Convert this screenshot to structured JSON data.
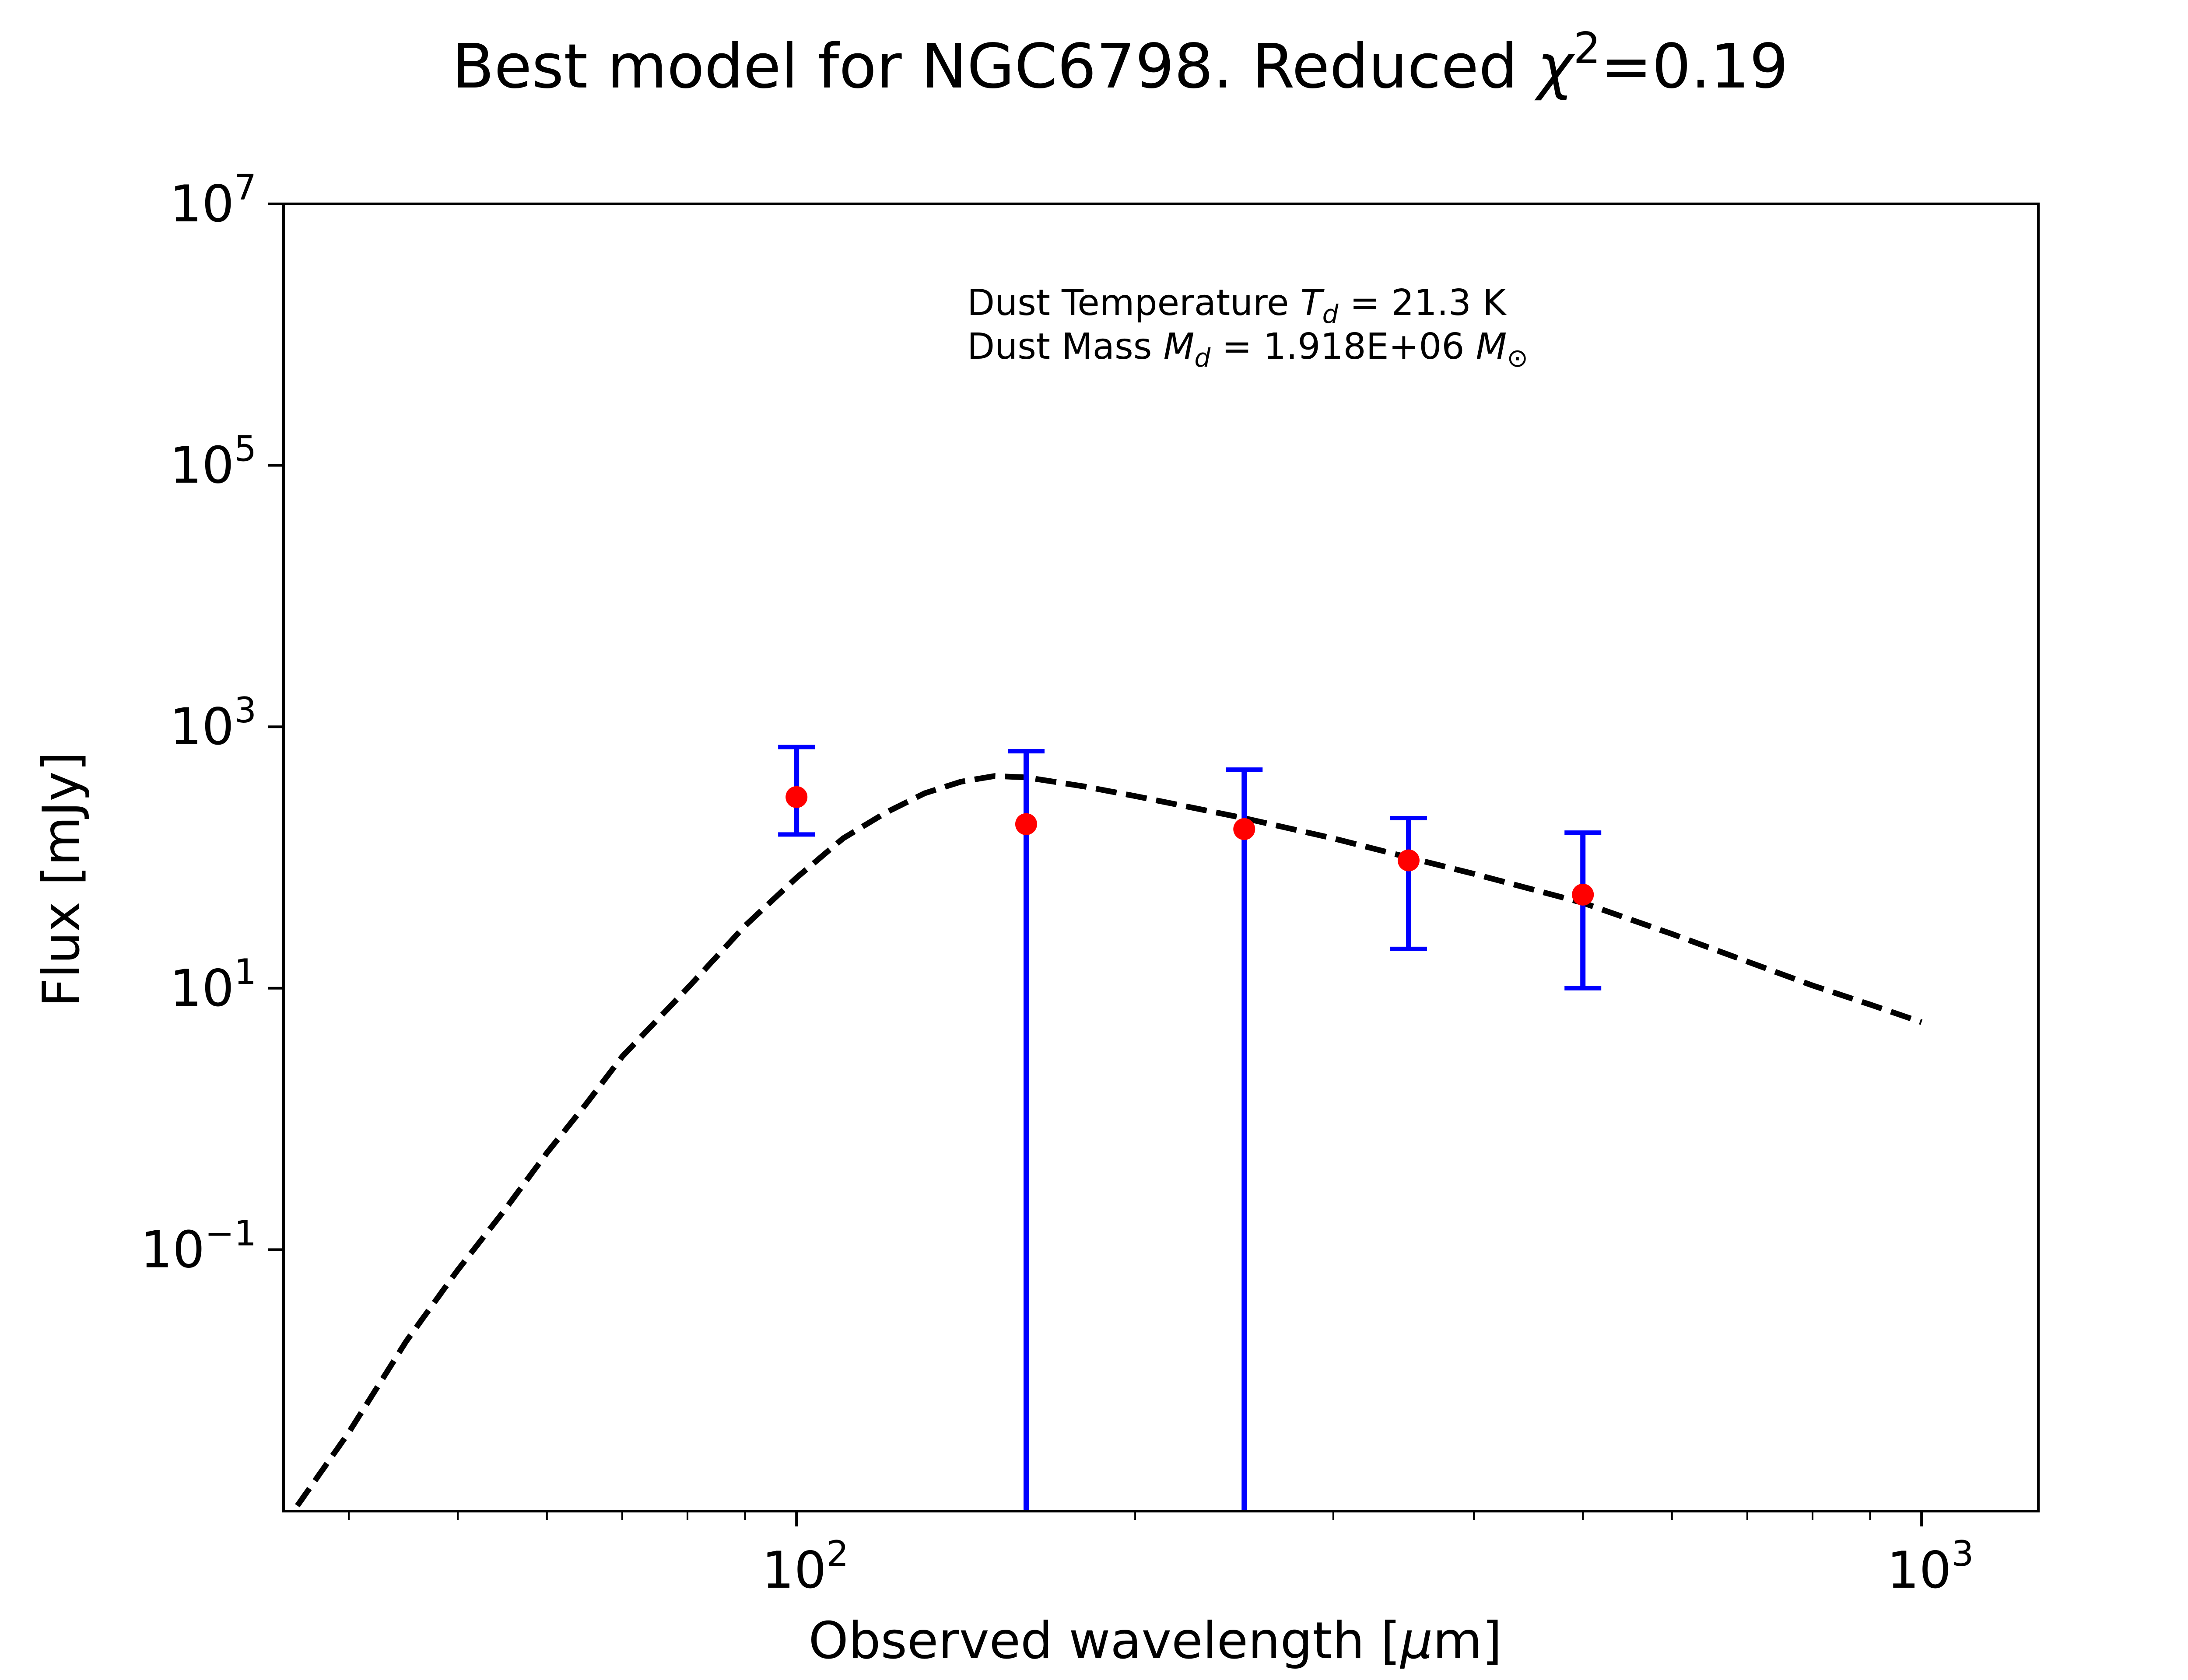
{
  "chart_data": {
    "type": "scatter",
    "title_main": "Best model for NGC6798. Reduced ",
    "title_chi": "χ",
    "title_sup": "2",
    "title_tail": "=0.19",
    "xlabel_text": "Observed wavelength [",
    "xlabel_mu": "μ",
    "xlabel_tail": "m]",
    "ylabel": "Flux [mJy]",
    "x_scale": "log",
    "y_scale": "log",
    "xlim": [
      35,
      1270
    ],
    "ylim": [
      0.001,
      10000000
    ],
    "x_major_ticks": [
      {
        "value": 100,
        "base": "10",
        "exp": "2"
      },
      {
        "value": 1000,
        "base": "10",
        "exp": "3"
      }
    ],
    "y_major_ticks": [
      {
        "value": 0.1,
        "base": "10",
        "exp": "−1"
      },
      {
        "value": 10,
        "base": "10",
        "exp": "1"
      },
      {
        "value": 1000,
        "base": "10",
        "exp": "3"
      },
      {
        "value": 100000,
        "base": "10",
        "exp": "5"
      },
      {
        "value": 10000000,
        "base": "10",
        "exp": "7"
      }
    ],
    "annotation": {
      "line1_prefix": "Dust Temperature ",
      "line1_sym": "T",
      "line1_sub": "d",
      "line1_value": " = 21.3 K",
      "line2_prefix": "Dust Mass ",
      "line2_sym": "M",
      "line2_sub": "d",
      "line2_value": " = 1.918E+06 ",
      "line2_unit": "M",
      "line2_unit_sub": "⊙"
    },
    "observations": [
      {
        "x": 100,
        "y": 290,
        "yerr_low": 150,
        "yerr_high": 700
      },
      {
        "x": 160,
        "y": 180,
        "yerr_low": 0.001,
        "yerr_high": 650
      },
      {
        "x": 250,
        "y": 165,
        "yerr_low": 0.001,
        "yerr_high": 470
      },
      {
        "x": 350,
        "y": 95,
        "yerr_low": 20,
        "yerr_high": 200
      },
      {
        "x": 500,
        "y": 52,
        "yerr_low": 10,
        "yerr_high": 155
      }
    ],
    "model": {
      "style": "dashed",
      "x": [
        36,
        40,
        45,
        50,
        55,
        60,
        65,
        70,
        80,
        90,
        100,
        110,
        120,
        130,
        140,
        150,
        160,
        180,
        200,
        250,
        300,
        350,
        400,
        500,
        600,
        700,
        800,
        900,
        1000
      ],
      "y": [
        0.0011,
        0.004,
        0.02,
        0.07,
        0.2,
        0.55,
        1.3,
        3,
        10,
        30,
        70,
        140,
        220,
        310,
        380,
        420,
        410,
        350,
        295,
        200,
        140,
        100,
        75,
        45,
        26,
        16,
        10.5,
        7.5,
        5.5
      ]
    },
    "colors": {
      "points": "#ff0000",
      "errorbars": "#0000ff",
      "model": "#000000",
      "axes": "#000000"
    },
    "grid": false,
    "legend": "none"
  }
}
